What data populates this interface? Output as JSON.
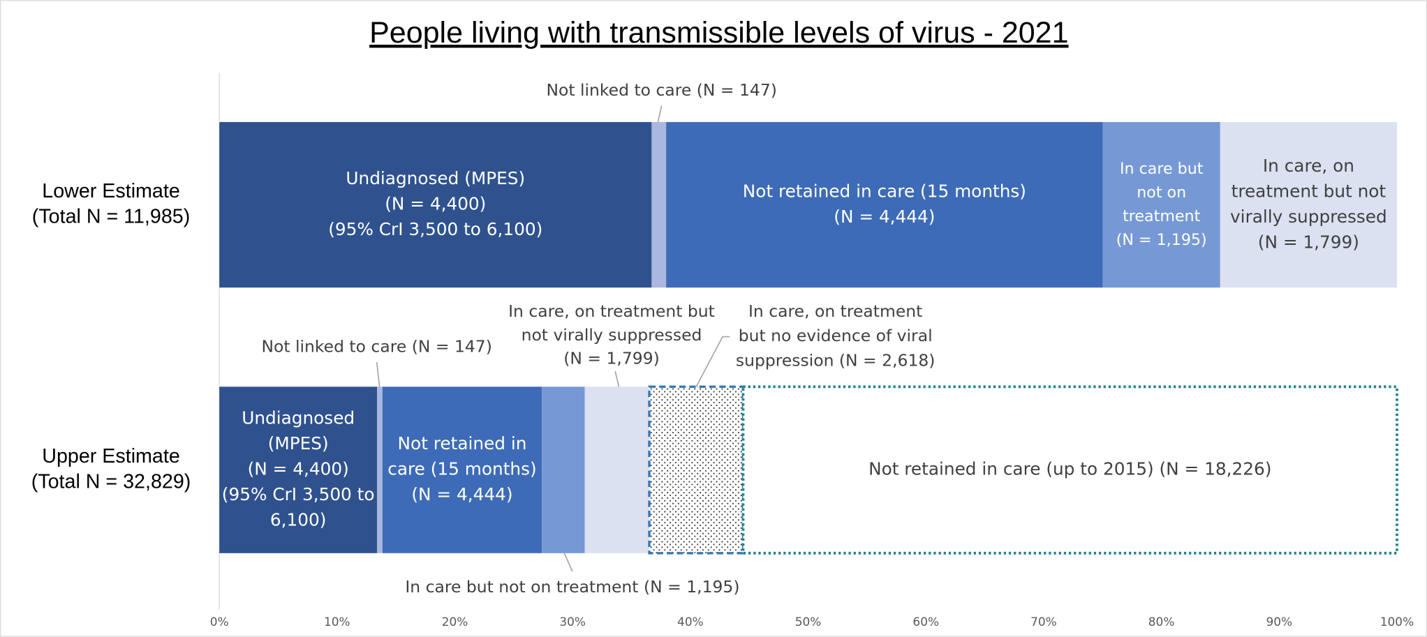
{
  "chart_data": {
    "type": "stacked-bar-horizontal",
    "title": "People living with transmissible levels of virus - 2021",
    "categories": [
      [
        "Lower Estimate",
        "(Total N = 11,985)"
      ],
      [
        "Upper Estimate",
        "(Total N = 32,829)"
      ]
    ],
    "xlim": [
      0,
      100
    ],
    "xticks": [
      {
        "value": 0,
        "label": "0%"
      },
      {
        "value": 10,
        "label": "10%"
      },
      {
        "value": 20,
        "label": "20%"
      },
      {
        "value": 30,
        "label": "30%"
      },
      {
        "value": 40,
        "label": "40%"
      },
      {
        "value": 50,
        "label": "50%"
      },
      {
        "value": 60,
        "label": "60%"
      },
      {
        "value": 70,
        "label": "70%"
      },
      {
        "value": 80,
        "label": "80%"
      },
      {
        "value": 90,
        "label": "90%"
      },
      {
        "value": 100,
        "label": "100%"
      }
    ],
    "series": [
      {
        "color": "#2f528f",
        "values": [
          36.71,
          13.4
        ],
        "value_labels": [
          [
            "Undiagnosed (MPES)",
            "(N = 4,400)",
            "(95% CrI 3,500 to 6,100)"
          ],
          [
            "Undiagnosed",
            "(MPES)",
            "(N = 4,400)",
            "(95% CrI 3,500 to",
            "6,100)"
          ]
        ]
      },
      {
        "color": "#aab7de",
        "values": [
          1.23,
          0.45
        ],
        "value_labels": [
          [
            "Not linked to care (N = 147)"
          ],
          [
            "Not linked to care (N = 147)"
          ]
        ]
      },
      {
        "color": "#3d6bb7",
        "values": [
          37.08,
          13.54
        ],
        "value_labels": [
          [
            "Not retained in care (15 months)",
            "(N = 4,444)"
          ],
          [
            "Not retained in",
            "care (15 months)",
            "(N = 4,444)"
          ]
        ]
      },
      {
        "color": "#7699d6",
        "values": [
          9.97,
          3.64
        ],
        "value_labels": [
          [
            "In care but",
            "not on",
            "treatment",
            "(N = 1,195)"
          ],
          [
            "In care but not on treatment (N = 1,195)"
          ]
        ]
      },
      {
        "color": "#dbe1f1",
        "values": [
          15.01,
          5.48
        ],
        "value_labels": [
          [
            "In care, on",
            "treatment but not",
            "virally suppressed",
            "(N = 1,799)"
          ],
          [
            "In care, on treatment but",
            "not virally suppressed",
            "(N = 1,799)"
          ]
        ]
      },
      {
        "color": "#2e75b6",
        "fill": "dots",
        "border": "dashed",
        "values": [
          null,
          7.97
        ],
        "value_labels": [
          null,
          [
            "In care, on treatment",
            "but no evidence of viral",
            "suppression (N = 2,618)"
          ]
        ]
      },
      {
        "color": "#1f8291",
        "fill": "none",
        "border": "dotted",
        "values": [
          null,
          55.52
        ],
        "value_labels": [
          null,
          [
            "Not retained in care (up to 2015) (N = 18,226)"
          ]
        ]
      }
    ]
  }
}
